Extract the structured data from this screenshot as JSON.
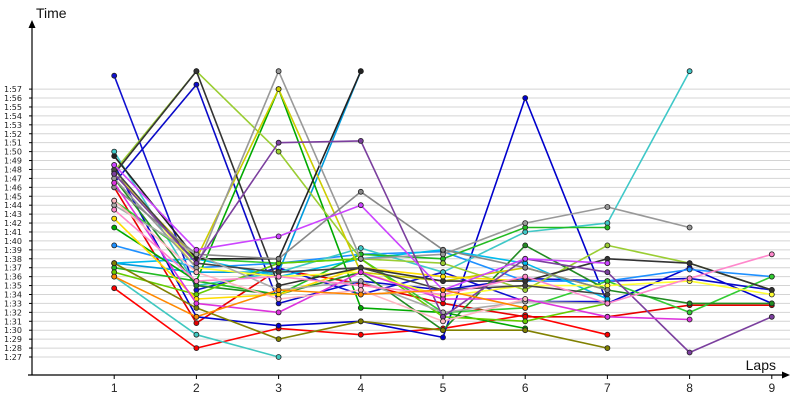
{
  "chart_data": {
    "type": "line",
    "title": "",
    "ylabel": "Time",
    "xlabel": "Laps",
    "x": [
      1,
      2,
      3,
      4,
      5,
      6,
      7,
      8,
      9
    ],
    "xlim": [
      0,
      9
    ],
    "ylim": [
      "1:26",
      "1:59"
    ],
    "y_ticks": [
      "1:27",
      "1:28",
      "1:29",
      "1:30",
      "1:31",
      "1:32",
      "1:33",
      "1:34",
      "1:35",
      "1:36",
      "1:37",
      "1:38",
      "1:39",
      "1:40",
      "1:41",
      "1:42",
      "1:43",
      "1:44",
      "1:45",
      "1:46",
      "1:47",
      "1:48",
      "1:49",
      "1:50",
      "1:51",
      "1:52",
      "1:53",
      "1:54",
      "1:55",
      "1:56",
      "1:57"
    ],
    "grid": true,
    "legend": "none",
    "series": [
      {
        "color": "#ff0000",
        "values": [
          "1:34.7",
          "1:28.0",
          "1:30.2",
          "1:29.5",
          "1:30.2",
          "1:31.7",
          "1:29.5",
          null,
          null
        ]
      },
      {
        "color": "#e60000",
        "values": [
          "1:46.0",
          "1:30.8",
          "1:36.8",
          "1:35.2",
          "1:33.0",
          "1:31.5",
          "1:31.5",
          "1:32.8",
          "1:32.8"
        ]
      },
      {
        "color": "#0000cc",
        "values": [
          "1:48.5",
          "1:31.5",
          "1:30.5",
          "1:31.0",
          "1:29.2",
          "1:56.0",
          "1:33.0",
          "1:37.0",
          "1:33.0"
        ]
      },
      {
        "color": "#1010d0",
        "values": [
          "1:58.5",
          "1:34.5",
          "1:37.0",
          "1:34.0",
          "1:36.5",
          "1:33.2",
          "1:33.2",
          null,
          null
        ]
      },
      {
        "color": "#0a0ac8",
        "values": [
          "1:46.5",
          "1:57.5",
          "1:33.0",
          "1:35.5",
          "1:34.5",
          "1:35.8",
          "1:35.5",
          "1:35.8",
          "1:34.5"
        ]
      },
      {
        "color": "#1e90ff",
        "values": [
          "1:39.5",
          "1:37.0",
          "1:37.5",
          "1:38.5",
          "1:38.8",
          "1:35.5",
          "1:35.5",
          "1:36.8",
          "1:36.0"
        ]
      },
      {
        "color": "#009bdd",
        "values": [
          "1:37.5",
          "1:36.5",
          "1:36.5",
          "1:59.0",
          null,
          null,
          null,
          null,
          null
        ]
      },
      {
        "color": "#00bbee",
        "values": [
          "1:37.5",
          "1:38.0",
          "1:36.0",
          "1:38.0",
          "1:39.0",
          "1:37.5",
          "1:33.5",
          null,
          null
        ]
      },
      {
        "color": "#3fc8c8",
        "values": [
          "1:50.0",
          "1:35.0",
          "1:36.5",
          "1:39.2",
          "1:36.5",
          "1:41.0",
          "1:42.0",
          "1:59.0",
          null
        ]
      },
      {
        "color": "#40c8c0",
        "values": [
          "1:36.0",
          "1:29.5",
          "1:27.0",
          null,
          null,
          null,
          null,
          null,
          null
        ]
      },
      {
        "color": "#00aa00",
        "values": [
          "1:41.5",
          "1:35.5",
          "1:57.0",
          "1:32.5",
          "1:32.0",
          "1:30.2",
          null,
          null,
          null
        ]
      },
      {
        "color": "#22bb22",
        "values": [
          "1:37.0",
          "1:35.5",
          "1:34.0",
          "1:38.5",
          "1:38.0",
          "1:41.5",
          "1:41.5",
          null,
          null
        ]
      },
      {
        "color": "#33cc33",
        "values": [
          "1:44.5",
          "1:38.0",
          "1:37.5",
          "1:38.0",
          "1:32.0",
          "1:32.5",
          "1:35.5",
          "1:32.0",
          "1:36.0"
        ]
      },
      {
        "color": "#228b22",
        "values": [
          "1:47.0",
          "1:35.0",
          "1:34.0",
          "1:36.5",
          "1:30.0",
          "1:39.5",
          "1:34.5",
          "1:33.0",
          "1:33.0"
        ]
      },
      {
        "color": "#66cc00",
        "values": [
          "1:36.5",
          "1:34.0",
          "1:37.5",
          "1:38.0",
          "1:31.5",
          "1:31.0",
          "1:33.0",
          null,
          null
        ]
      },
      {
        "color": "#9acd32",
        "values": [
          "1:47.8",
          "1:59.0",
          "1:50.0",
          "1:38.0",
          "1:37.5",
          "1:34.5",
          "1:39.5",
          "1:37.5",
          "1:34.5"
        ]
      },
      {
        "color": "#cccc00",
        "values": [
          "1:47.5",
          "1:38.0",
          "1:57.0",
          "1:36.5",
          "1:35.5",
          "1:37.0",
          "1:34.5",
          null,
          null
        ]
      },
      {
        "color": "#ffdd00",
        "values": [
          "1:42.5",
          "1:33.5",
          "1:34.0",
          "1:37.0",
          "1:36.0",
          "1:35.5",
          null,
          null,
          null
        ]
      },
      {
        "color": "#ffff33",
        "values": [
          "1:48.0",
          "1:37.0",
          "1:36.0",
          "1:36.5",
          "1:33.8",
          "1:35.0",
          "1:35.0",
          "1:35.5",
          "1:34.0"
        ]
      },
      {
        "color": "#222222",
        "values": [
          "1:49.5",
          "1:38.0",
          "1:38.0",
          "1:59.0",
          null,
          null,
          null,
          null,
          null
        ]
      },
      {
        "color": "#333333",
        "values": [
          "1:47.5",
          "1:59.0",
          "1:35.0",
          "1:37.0",
          "1:35.5",
          "1:35.5",
          "1:38.0",
          "1:37.5",
          "1:34.5"
        ]
      },
      {
        "color": "#444444",
        "values": [
          "1:48.0",
          "1:37.5",
          "1:36.5",
          "1:37.0",
          "1:34.5",
          "1:35.0",
          "1:34.0",
          null,
          null
        ]
      },
      {
        "color": "#999999",
        "values": [
          "1:47.0",
          "1:37.0",
          "1:59.0",
          "1:38.0",
          "1:38.5",
          "1:42.0",
          "1:43.8",
          "1:41.5",
          null
        ]
      },
      {
        "color": "#888888",
        "values": [
          "1:46.0",
          "1:38.5",
          "1:38.0",
          "1:45.5",
          "1:39.0",
          "1:37.0",
          "1:34.5",
          null,
          null
        ]
      },
      {
        "color": "#aaaaaa",
        "values": [
          "1:44.0",
          "1:38.5",
          "1:34.5",
          "1:35.5",
          "1:32.0",
          "1:33.2",
          "1:33.0",
          null,
          null
        ]
      },
      {
        "color": "#808000",
        "values": [
          "1:37.5",
          "1:32.5",
          "1:29.0",
          "1:31.0",
          "1:30.0",
          "1:30.0",
          "1:28.0",
          null,
          null
        ]
      },
      {
        "color": "#7b3f9e",
        "values": [
          "1:47.5",
          "1:37.5",
          "1:51.0",
          "1:51.2",
          "1:31.5",
          "1:38.0",
          "1:36.5",
          "1:27.5",
          "1:31.5"
        ]
      },
      {
        "color": "#cc44ff",
        "values": [
          "1:48.5",
          "1:39.0",
          "1:40.5",
          "1:44.0",
          "1:34.5",
          "1:38.0",
          "1:37.5",
          null,
          null
        ]
      },
      {
        "color": "#dd33dd",
        "values": [
          "1:46.5",
          "1:33.0",
          "1:32.0",
          "1:36.5",
          "1:33.5",
          "1:33.5",
          "1:31.5",
          "1:31.2",
          null
        ]
      },
      {
        "color": "#ff88cc",
        "values": [
          "1:43.5",
          "1:35.5",
          "1:36.0",
          "1:35.0",
          "1:34.0",
          "1:36.0",
          "1:33.0",
          "1:35.8",
          "1:38.5"
        ]
      },
      {
        "color": "#ffb6c1",
        "values": [
          "1:44.5",
          "1:36.5",
          "1:33.5",
          "1:34.5",
          "1:31.0",
          "1:33.5",
          null,
          null,
          null
        ]
      },
      {
        "color": "#ff8800",
        "values": [
          "1:36.0",
          "1:31.5",
          "1:34.5",
          "1:34.0",
          "1:34.5",
          "1:32.5",
          null,
          null,
          null
        ]
      }
    ]
  }
}
